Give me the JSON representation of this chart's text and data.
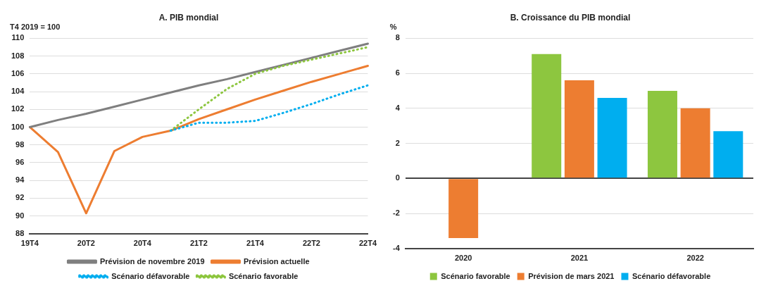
{
  "chart_data": [
    {
      "type": "line",
      "title": "A. PIB mondial",
      "ylabel": "T4 2019 = 100",
      "categories": [
        "19T4",
        null,
        "20T2",
        null,
        "20T4",
        null,
        "21T2",
        null,
        "21T4",
        null,
        "22T2",
        null,
        "22T4"
      ],
      "series": [
        {
          "name": "Prévision de novembre 2019",
          "color": "#7f7f7f",
          "line_style": "solid",
          "values": [
            100,
            100.8,
            101.5,
            102.3,
            103.1,
            103.9,
            104.7,
            105.4,
            106.2,
            107.0,
            107.8,
            108.6,
            109.4
          ]
        },
        {
          "name": "Prévision actuelle",
          "color": "#ed7d31",
          "line_style": "solid",
          "values": [
            100,
            97.2,
            90.3,
            97.3,
            98.9,
            99.6,
            100.9,
            102.0,
            103.1,
            104.1,
            105.1,
            106.0,
            106.9
          ]
        },
        {
          "name": "Scénario défavorable",
          "color": "#00aeef",
          "line_style": "dotted",
          "values": [
            null,
            null,
            null,
            null,
            null,
            99.6,
            100.5,
            100.5,
            100.7,
            101.6,
            102.6,
            103.7,
            104.7
          ]
        },
        {
          "name": "Scénario favorable",
          "color": "#8dc63f",
          "line_style": "dotted",
          "values": [
            null,
            null,
            null,
            null,
            null,
            99.6,
            102.0,
            104.3,
            106.0,
            106.9,
            107.6,
            108.3,
            109.0
          ]
        }
      ],
      "ylim": [
        88,
        110
      ],
      "yticks": [
        88,
        90,
        92,
        94,
        96,
        98,
        100,
        102,
        104,
        106,
        108,
        110
      ],
      "grid": "y",
      "legend": "bottom",
      "marker": "none"
    },
    {
      "type": "bar",
      "title": "B. Croissance du PIB mondial",
      "ylabel": "%",
      "categories": [
        "2020",
        "2021",
        "2022"
      ],
      "series": [
        {
          "name": "Scénario favorable",
          "color": "#8dc63f",
          "values": [
            null,
            7.1,
            5.0
          ]
        },
        {
          "name": "Prévision de mars 2021",
          "color": "#ed7d31",
          "values": [
            -3.4,
            5.6,
            4.0
          ]
        },
        {
          "name": "Scénario défavorable",
          "color": "#00aeef",
          "values": [
            null,
            4.6,
            2.7
          ]
        }
      ],
      "ylim": [
        -4,
        8
      ],
      "yticks": [
        -4,
        -2,
        0,
        2,
        4,
        6,
        8
      ],
      "grid": "y",
      "legend": "bottom"
    }
  ]
}
